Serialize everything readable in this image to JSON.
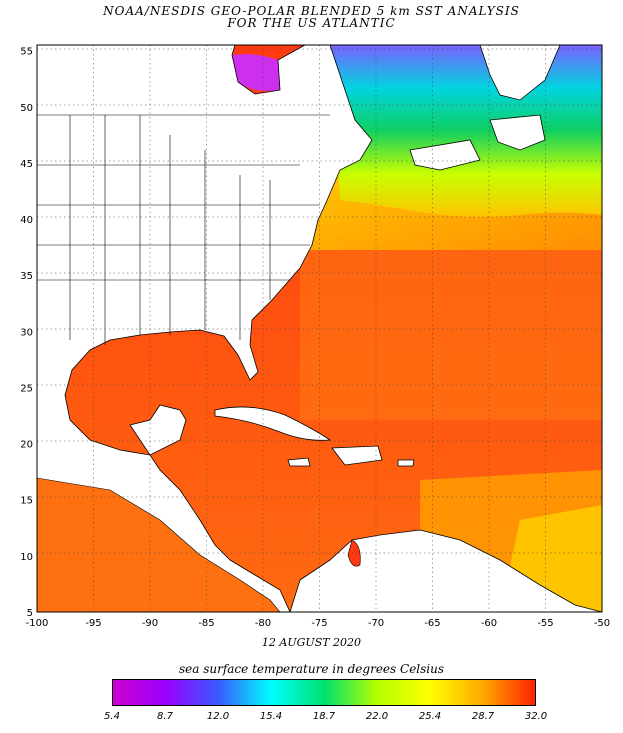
{
  "header": {
    "title_line1": "NOAA/NESDIS GEO-POLAR BLENDED 5 km SST ANALYSIS",
    "title_line2": "FOR THE US ATLANTIC"
  },
  "map": {
    "region": "US Atlantic, Gulf of Mexico and Caribbean",
    "lon_ticks": [
      "-100",
      "-95",
      "-90",
      "-85",
      "-80",
      "-75",
      "-70",
      "-65",
      "-60",
      "-55",
      "-50"
    ],
    "lat_ticks": [
      "55",
      "50",
      "45",
      "40",
      "35",
      "30",
      "25",
      "20",
      "15",
      "10",
      "5"
    ],
    "lon_range": [
      -100,
      -50
    ],
    "lat_range": [
      5,
      55.5
    ]
  },
  "date": "12 AUGUST 2020",
  "colorbar": {
    "title": "sea surface temperature in degrees Celsius",
    "labels": [
      "5.4",
      "8.7",
      "12.0",
      "15.4",
      "18.7",
      "22.0",
      "25.4",
      "28.7",
      "32.0"
    ],
    "colors": [
      "#cc00cc",
      "#9a00ff",
      "#3a5aff",
      "#00ffff",
      "#00e070",
      "#b4ff00",
      "#ffff00",
      "#ffaa00",
      "#ff2200"
    ]
  },
  "legend_colors": {
    "land": "#ffffff",
    "warm": "#ff5a1c",
    "cool": "#00d4e0"
  }
}
